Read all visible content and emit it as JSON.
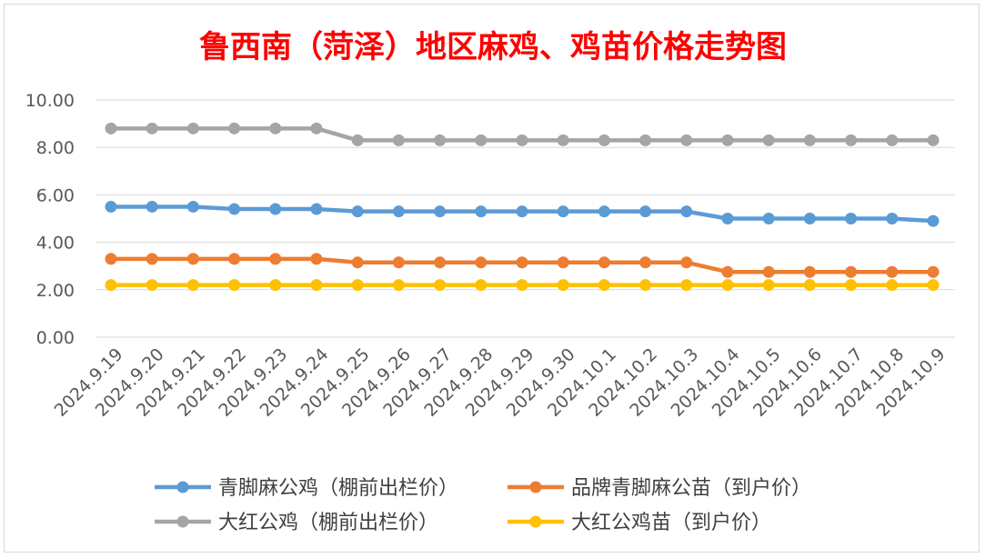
{
  "chart_data": {
    "type": "line",
    "title": "鲁西南（菏泽）地区麻鸡、鸡苗价格走势图",
    "title_color": "#ff0000",
    "x": [
      "2024.9.19",
      "2024.9.20",
      "2024.9.21",
      "2024.9.22",
      "2024.9.23",
      "2024.9.24",
      "2024.9.25",
      "2024.9.26",
      "2024.9.27",
      "2024.9.28",
      "2024.9.29",
      "2024.9.30",
      "2024.10.1",
      "2024.10.2",
      "2024.10.3",
      "2024.10.4",
      "2024.10.5",
      "2024.10.6",
      "2024.10.7",
      "2024.10.8",
      "2024.10.9"
    ],
    "ylim": [
      0,
      10
    ],
    "yticks": [
      0,
      2,
      4,
      6,
      8,
      10
    ],
    "ytick_labels": [
      "0.00",
      "2.00",
      "4.00",
      "6.00",
      "8.00",
      "10.00"
    ],
    "grid": true,
    "legend_position": "bottom",
    "series": [
      {
        "name": "青脚麻公鸡（棚前出栏价）",
        "color": "#5b9bd5",
        "values": [
          5.5,
          5.5,
          5.5,
          5.4,
          5.4,
          5.4,
          5.3,
          5.3,
          5.3,
          5.3,
          5.3,
          5.3,
          5.3,
          5.3,
          5.3,
          5.0,
          5.0,
          5.0,
          5.0,
          5.0,
          4.9
        ]
      },
      {
        "name": "品牌青脚麻公苗（到户价）",
        "color": "#ed7d31",
        "values": [
          3.3,
          3.3,
          3.3,
          3.3,
          3.3,
          3.3,
          3.15,
          3.15,
          3.15,
          3.15,
          3.15,
          3.15,
          3.15,
          3.15,
          3.15,
          2.75,
          2.75,
          2.75,
          2.75,
          2.75,
          2.75
        ]
      },
      {
        "name": "大红公鸡（棚前出栏价）",
        "color": "#a5a5a5",
        "values": [
          8.8,
          8.8,
          8.8,
          8.8,
          8.8,
          8.8,
          8.3,
          8.3,
          8.3,
          8.3,
          8.3,
          8.3,
          8.3,
          8.3,
          8.3,
          8.3,
          8.3,
          8.3,
          8.3,
          8.3,
          8.3
        ]
      },
      {
        "name": "大红公鸡苗（到户价）",
        "color": "#ffc000",
        "values": [
          2.2,
          2.2,
          2.2,
          2.2,
          2.2,
          2.2,
          2.2,
          2.2,
          2.2,
          2.2,
          2.2,
          2.2,
          2.2,
          2.2,
          2.2,
          2.2,
          2.2,
          2.2,
          2.2,
          2.2,
          2.2
        ]
      }
    ]
  }
}
